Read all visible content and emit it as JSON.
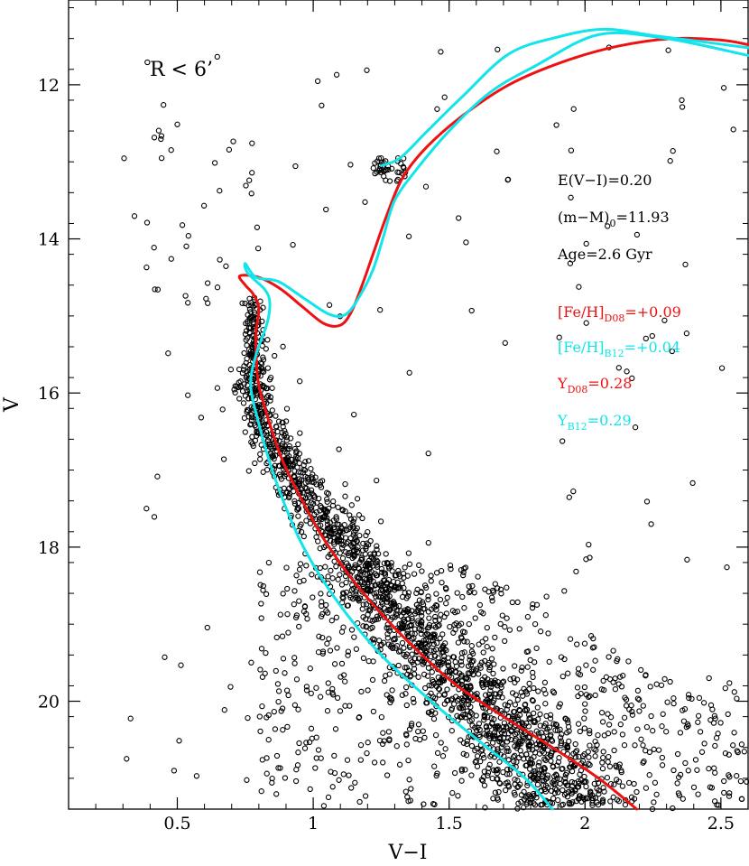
{
  "chart_data": {
    "type": "scatter",
    "title": "",
    "xlabel": "V−I",
    "ylabel": "V",
    "xlim": [
      0.1,
      2.6
    ],
    "ylim": [
      21.4,
      10.9
    ],
    "y_inverted": true,
    "x_ticks": [
      0.5,
      1,
      1.5,
      2,
      2.5
    ],
    "x_tick_labels": [
      "0.5",
      "1",
      "1.5",
      "2",
      "2.5"
    ],
    "y_ticks": [
      12,
      14,
      16,
      18,
      20
    ],
    "y_tick_labels": [
      "12",
      "14",
      "16",
      "18",
      "20"
    ],
    "grid": false,
    "region_label": "R < 6’",
    "annotations": {
      "reddening": "E(V−I)=0.20",
      "distance_pre": "(m−M)",
      "distance_sub": "0",
      "distance_post": "=11.93",
      "age": "Age=2.6 Gyr",
      "feh_d08_pre": "[Fe/H]",
      "feh_d08_sub": "D08",
      "feh_d08_post": "=+0.09",
      "feh_b12_pre": "[Fe/H]",
      "feh_b12_sub": "B12",
      "feh_b12_post": "=+0.04",
      "y_d08_pre": "Y",
      "y_d08_sub": "D08",
      "y_d08_post": "=0.28",
      "y_b12_pre": "Y",
      "y_b12_sub": "B12",
      "y_b12_post": "=0.29"
    },
    "colors": {
      "d08": "#ee1111",
      "b12": "#11e4ea",
      "points": "#000000",
      "text": "#000000"
    },
    "series": [
      {
        "name": "Isochrone D08",
        "kind": "line",
        "color": "#ee1111",
        "points": [
          [
            2.19,
            21.4
          ],
          [
            2.05,
            21.0
          ],
          [
            1.88,
            20.6
          ],
          [
            1.7,
            20.2
          ],
          [
            1.53,
            19.8
          ],
          [
            1.4,
            19.4
          ],
          [
            1.26,
            18.9
          ],
          [
            1.14,
            18.4
          ],
          [
            1.04,
            17.9
          ],
          [
            0.96,
            17.4
          ],
          [
            0.89,
            16.9
          ],
          [
            0.84,
            16.4
          ],
          [
            0.8,
            15.9
          ],
          [
            0.79,
            15.5
          ],
          [
            0.79,
            15.2
          ],
          [
            0.8,
            14.9
          ],
          [
            0.78,
            14.72
          ],
          [
            0.75,
            14.6
          ],
          [
            0.73,
            14.48
          ],
          [
            0.8,
            14.5
          ],
          [
            0.88,
            14.65
          ],
          [
            0.96,
            14.88
          ],
          [
            1.04,
            15.1
          ],
          [
            1.1,
            15.12
          ],
          [
            1.14,
            14.95
          ],
          [
            1.18,
            14.6
          ],
          [
            1.22,
            14.2
          ],
          [
            1.27,
            13.7
          ],
          [
            1.33,
            13.2
          ],
          [
            1.42,
            12.8
          ],
          [
            1.55,
            12.4
          ],
          [
            1.72,
            12.0
          ],
          [
            1.92,
            11.7
          ],
          [
            2.12,
            11.5
          ],
          [
            2.32,
            11.4
          ],
          [
            2.5,
            11.42
          ],
          [
            2.6,
            11.48
          ]
        ]
      },
      {
        "name": "Isochrone B12",
        "kind": "line",
        "color": "#11e4ea",
        "points": [
          [
            1.88,
            21.4
          ],
          [
            1.78,
            21.0
          ],
          [
            1.64,
            20.6
          ],
          [
            1.5,
            20.2
          ],
          [
            1.37,
            19.8
          ],
          [
            1.25,
            19.4
          ],
          [
            1.13,
            18.9
          ],
          [
            1.03,
            18.4
          ],
          [
            0.95,
            17.9
          ],
          [
            0.89,
            17.4
          ],
          [
            0.84,
            16.9
          ],
          [
            0.8,
            16.4
          ],
          [
            0.77,
            15.9
          ],
          [
            0.79,
            15.5
          ],
          [
            0.83,
            15.1
          ],
          [
            0.84,
            14.82
          ],
          [
            0.82,
            14.65
          ],
          [
            0.76,
            14.45
          ],
          [
            0.75,
            14.32
          ],
          [
            0.79,
            14.5
          ],
          [
            0.87,
            14.55
          ],
          [
            0.97,
            14.78
          ],
          [
            1.06,
            14.98
          ],
          [
            1.12,
            14.98
          ],
          [
            1.17,
            14.75
          ],
          [
            1.22,
            14.4
          ],
          [
            1.26,
            13.95
          ],
          [
            1.3,
            13.5
          ],
          [
            1.38,
            13.1
          ],
          [
            1.5,
            12.6
          ],
          [
            1.65,
            12.1
          ],
          [
            1.82,
            11.75
          ],
          [
            2.05,
            11.35
          ],
          [
            2.3,
            11.4
          ],
          [
            2.6,
            11.62
          ]
        ]
      },
      {
        "name": "Isochrone B12 (upper branch)",
        "kind": "line",
        "color": "#11e4ea",
        "points": [
          [
            1.25,
            13.05
          ],
          [
            1.32,
            12.95
          ],
          [
            1.42,
            12.6
          ],
          [
            1.55,
            12.15
          ],
          [
            1.72,
            11.6
          ],
          [
            1.9,
            11.38
          ],
          [
            2.07,
            11.28
          ],
          [
            2.25,
            11.36
          ],
          [
            2.45,
            11.45
          ],
          [
            2.6,
            11.52
          ]
        ]
      }
    ]
  }
}
